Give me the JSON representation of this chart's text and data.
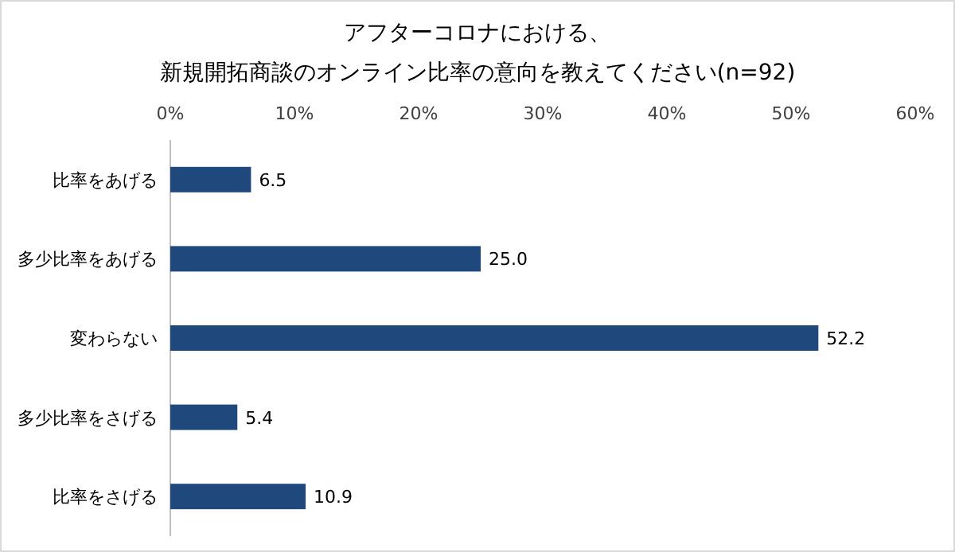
{
  "chart_data": {
    "type": "bar",
    "orientation": "horizontal",
    "title": "アフターコロナにおける、新規開拓商談のオンライン比率の意向を教えてください(n=92)",
    "categories": [
      "比率をあげる",
      "多少比率をあげる",
      "変わらない",
      "多少比率をさげる",
      "比率をさげる"
    ],
    "values": [
      6.5,
      25.0,
      52.2,
      5.4,
      10.9
    ],
    "value_labels": [
      "6.5",
      "25.0",
      "52.2",
      "5.4",
      "10.9"
    ],
    "color": "#1f497d",
    "xlim": [
      0,
      60
    ],
    "xticks": [
      {
        "value": 0,
        "label": "0%"
      },
      {
        "value": 10,
        "label": "10%"
      },
      {
        "value": 20,
        "label": "20%"
      },
      {
        "value": 30,
        "label": "30%"
      },
      {
        "value": 40,
        "label": "40%"
      },
      {
        "value": 50,
        "label": "50%"
      },
      {
        "value": 60,
        "label": "60%"
      }
    ]
  }
}
